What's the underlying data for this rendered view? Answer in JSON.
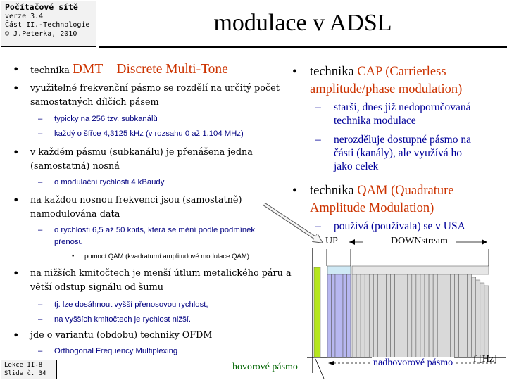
{
  "header": {
    "course_title": "Počítačové sítě",
    "version": "verze 3.4",
    "part": "Část II.-Technologie",
    "copyright": "© J.Peterka, 2010",
    "slide_title": "modulace v ADSL"
  },
  "left": {
    "b1_prefix": "technika ",
    "b1_highlight": "DMT – Discrete Multi-Tone",
    "b2_l1": "využitelné frekvenční pásmo se rozdělí na určitý počet",
    "b2_l2": "samostatných dílčích pásem",
    "s2a": "typicky na 256 tzv. subkanálů",
    "s2b": "každý o šířce 4,3125 kHz (v rozsahu 0 až 1,104 MHz)",
    "b3_l1": "v každém pásmu (subkanálu) je přenášena jedna",
    "b3_l2": "(samostatná) nosná",
    "s3a": "o modulační rychlosti 4 kBaudy",
    "b4_l1": "na každou nosnou frekvenci jsou (samostatně)",
    "b4_l2": "namodulována data",
    "s4a_l1": "o rychlosti 6,5 až 50 kbits, která se mění podle podmínek",
    "s4a_l2": "přenosu",
    "ss4": "pomocí QAM (kvadraturní amplitudové modulace QAM)",
    "b5_l1": "na nižších kmitočtech je menší útlum metalického páru a",
    "b5_l2": "větší odstup signálu od šumu",
    "s5a": "tj. lze dosáhnout vyšší přenosovou rychlost,",
    "s5b": "na vyšších kmitočtech je rychlost nižší.",
    "b6": "jde o variantu (obdobu) techniky OFDM",
    "s6a": "Orthogonal Frequency Multiplexing"
  },
  "right": {
    "cap_prefix": "technika ",
    "cap_l1": "CAP (Carrierless",
    "cap_l2": "amplitude/phase modulation)",
    "cap_s1_l1": "starší, dnes již nedoporučovaná",
    "cap_s1_l2": "technika modulace",
    "cap_s2_l1": "nerozděluje dostupné pásmo na",
    "cap_s2_l2": "části (kanály), ale využívá ho",
    "cap_s2_l3": "jako celek",
    "qam_prefix": "technika ",
    "qam_l1": "QAM (Quadrature",
    "qam_l2": "Amplitude Modulation)",
    "qam_s1": "používá (používala) se v USA"
  },
  "diagram": {
    "up_label": "UP",
    "down_label": "DOWNstream",
    "voice_label": "hovorové pásmo",
    "data_label": "nadhovorové pásmo",
    "axis_label": "f [Hz]"
  },
  "footer": {
    "lecture": "Lekce II-8",
    "slide": "Slide č. 34"
  },
  "colors": {
    "accent_red": "#cc3300",
    "sub_blue": "#000080",
    "voice_green": "#b5e61d",
    "up_blue": "#b7b7f0",
    "down_gray": "#d9d9d9"
  }
}
